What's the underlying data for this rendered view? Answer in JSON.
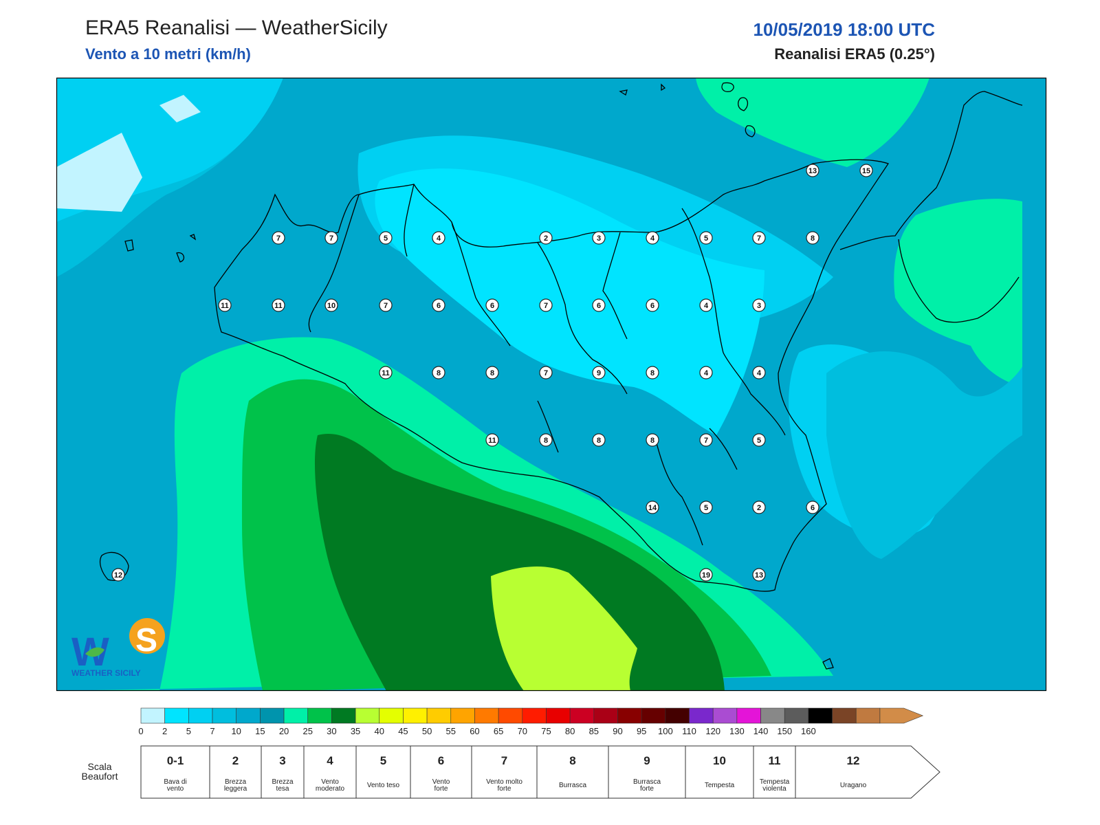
{
  "header": {
    "title": "ERA5 Reanalisi — WeatherSicily",
    "subtitle": "Vento a 10 metri (km/h)",
    "datetime": "10/05/2019 18:00 UTC",
    "source": "Reanalisi ERA5 (0.25°)"
  },
  "logo": {
    "text": "WEATHER SICILY"
  },
  "stations": [
    {
      "label": "13"
    },
    {
      "label": "15"
    },
    {
      "label": "7"
    },
    {
      "label": "7"
    },
    {
      "label": "5"
    },
    {
      "label": "4"
    },
    {
      "label": "2"
    },
    {
      "label": "3"
    },
    {
      "label": "4"
    },
    {
      "label": "5"
    },
    {
      "label": "7"
    },
    {
      "label": "8"
    },
    {
      "label": "11"
    },
    {
      "label": "11"
    },
    {
      "label": "10"
    },
    {
      "label": "7"
    },
    {
      "label": "6"
    },
    {
      "label": "6"
    },
    {
      "label": "7"
    },
    {
      "label": "6"
    },
    {
      "label": "6"
    },
    {
      "label": "4"
    },
    {
      "label": "3"
    },
    {
      "label": "11"
    },
    {
      "label": "8"
    },
    {
      "label": "8"
    },
    {
      "label": "7"
    },
    {
      "label": "9"
    },
    {
      "label": "8"
    },
    {
      "label": "4"
    },
    {
      "label": "4"
    },
    {
      "label": "11"
    },
    {
      "label": "8"
    },
    {
      "label": "8"
    },
    {
      "label": "8"
    },
    {
      "label": "7"
    },
    {
      "label": "5"
    },
    {
      "label": "14"
    },
    {
      "label": "5"
    },
    {
      "label": "2"
    },
    {
      "label": "6"
    },
    {
      "label": "19"
    },
    {
      "label": "13"
    },
    {
      "label": "12"
    }
  ],
  "colorbar": {
    "colors": [
      "#c2f4ff",
      "#00e4ff",
      "#00d0f2",
      "#00bede",
      "#00a8cc",
      "#0094ad",
      "#00f0a8",
      "#00c24a",
      "#007a22",
      "#b8ff32",
      "#e4ff00",
      "#fff000",
      "#ffcc00",
      "#ffa400",
      "#ff7a00",
      "#ff4a00",
      "#ff1c00",
      "#e80000",
      "#cc0022",
      "#aa0016",
      "#880000",
      "#660000",
      "#440000",
      "#7a28cc",
      "#aa4cd2",
      "#e414d8",
      "#888888",
      "#5c5c5c",
      "#000000",
      "#7a4426",
      "#c07a40",
      "#d28c48"
    ],
    "ticks": [
      "0",
      "2",
      "5",
      "7",
      "10",
      "15",
      "20",
      "25",
      "30",
      "35",
      "40",
      "45",
      "50",
      "55",
      "60",
      "65",
      "70",
      "75",
      "80",
      "85",
      "90",
      "95",
      "100",
      "110",
      "120",
      "130",
      "140",
      "150",
      "160"
    ]
  },
  "beaufort": {
    "caption_line1": "Scala",
    "caption_line2": "Beaufort",
    "levels": [
      {
        "num": "0-1",
        "desc": [
          "Bava di",
          "vento"
        ]
      },
      {
        "num": "2",
        "desc": [
          "Brezza",
          "leggera"
        ]
      },
      {
        "num": "3",
        "desc": [
          "Brezza",
          "tesa"
        ]
      },
      {
        "num": "4",
        "desc": [
          "Vento",
          "moderato"
        ]
      },
      {
        "num": "5",
        "desc": [
          "Vento teso"
        ]
      },
      {
        "num": "6",
        "desc": [
          "Vento",
          "forte"
        ]
      },
      {
        "num": "7",
        "desc": [
          "Vento molto",
          "forte"
        ]
      },
      {
        "num": "8",
        "desc": [
          "Burrasca"
        ]
      },
      {
        "num": "9",
        "desc": [
          "Burrasca",
          "forte"
        ]
      },
      {
        "num": "10",
        "desc": [
          "Tempesta"
        ]
      },
      {
        "num": "11",
        "desc": [
          "Tempesta",
          "violenta"
        ]
      },
      {
        "num": "12",
        "desc": [
          "Uragano"
        ]
      }
    ]
  }
}
